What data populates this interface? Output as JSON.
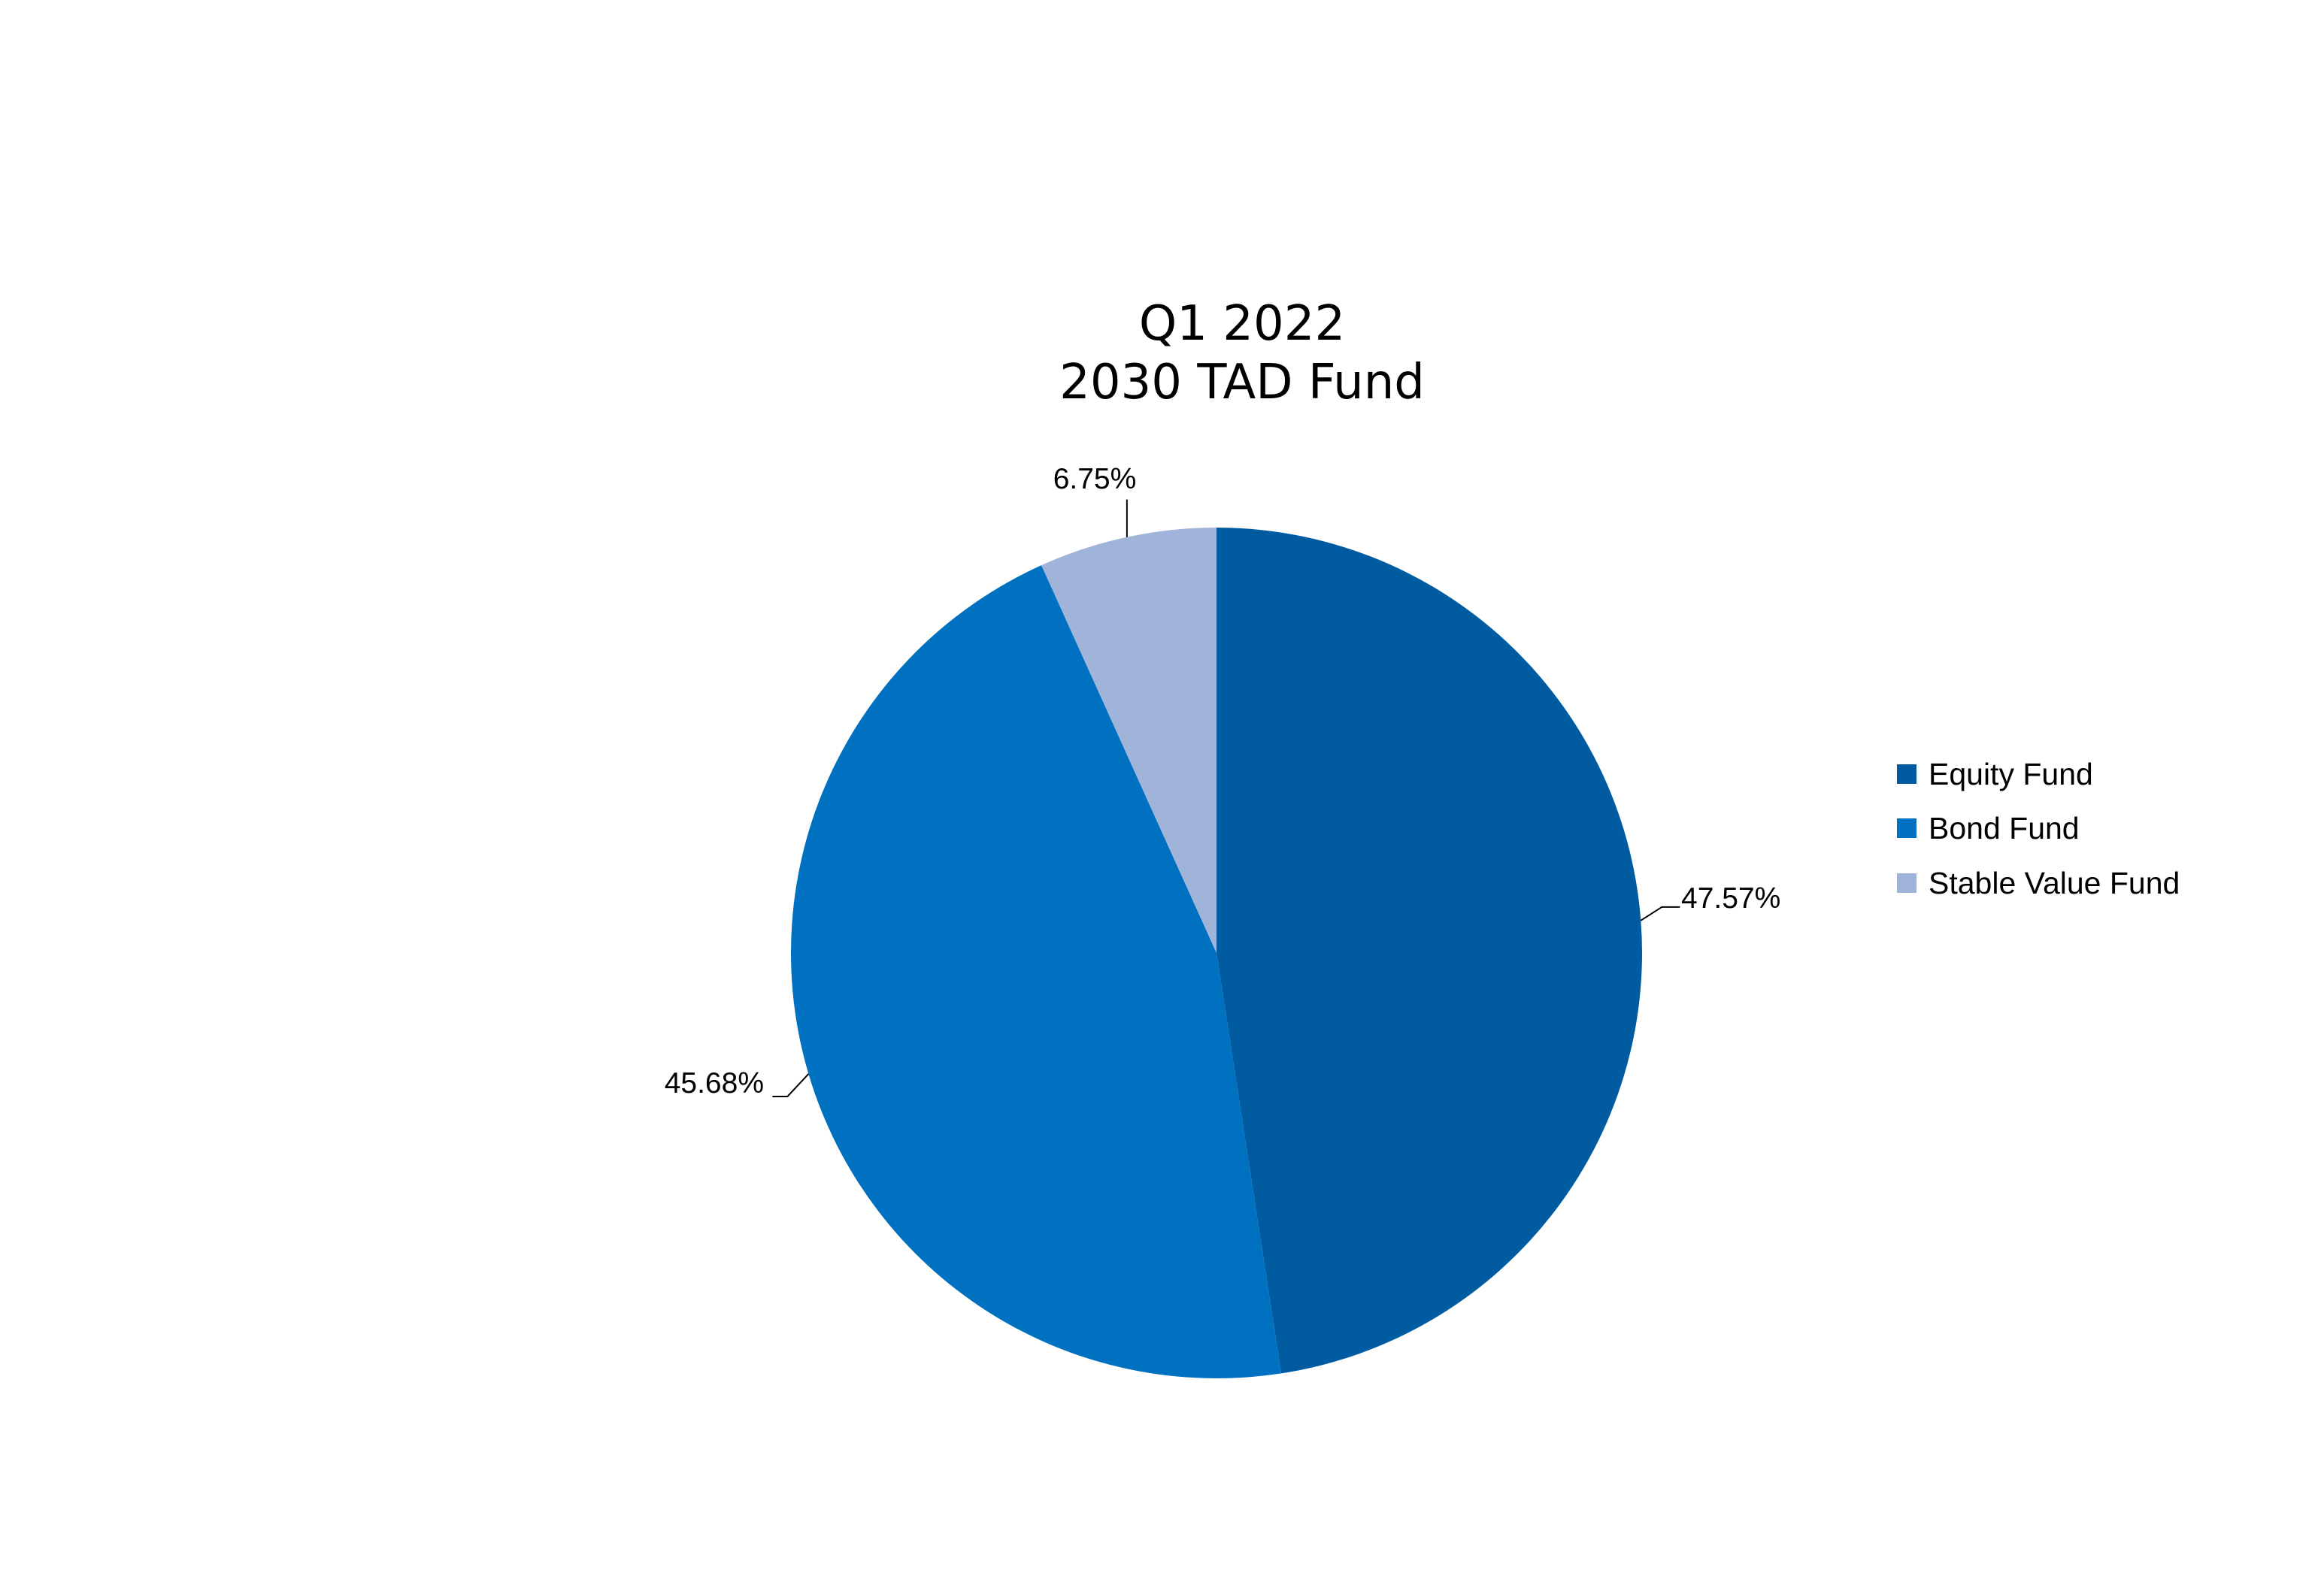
{
  "chart_data": {
    "type": "pie",
    "title_lines": [
      "Q1 2022",
      "2030 TAD Fund"
    ],
    "slices": [
      {
        "name": "Equity Fund",
        "value": 47.57,
        "label": "47.57%",
        "color": "#005ba1"
      },
      {
        "name": "Bond Fund",
        "value": 45.68,
        "label": "45.68%",
        "color": "#0070c0"
      },
      {
        "name": "Stable Value Fund",
        "value": 6.75,
        "label": "6.75%",
        "color": "#a0b4d9"
      }
    ],
    "legend_placement": "right"
  }
}
